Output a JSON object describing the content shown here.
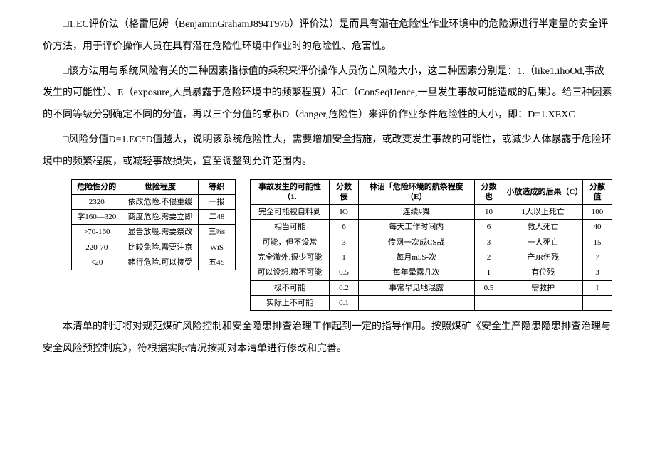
{
  "paragraphs": {
    "p1": "□1.EC评价法（格雷厄姆（BenjaminGrahamJ894T976）评价法）是而具有潜在危险性作业环境中的危险源进行半定量的安全评价方法，用于评价操作人员在具有潜在危险性环境中作业时的危险性、危害性。",
    "p2": "□该方法用与系统风险有关的三种因素指标值的乘积来评价操作人员伤亡风险大小，这三种因素分别是：1.（like1.ihoOd,事故发生的可能性）、E（exposure,人员暴露于危险环境中的频繁程度）和C（ConSeqUence,一旦发生事故可能造成的后果）。给三种因素的不同等级分别确定不同的分值，再以三个分值的乘积D（danger,危险性）来评价作业条件危险性的大小，即：D=1.XEXC",
    "p3": "□风险分值D=1.EC°D值越大，说明该系统危险性大，需要增加安全措施，或改变发生事故的可能性，或减少人体暴露于危险环境中的频繁程度，或减轻事故损失，宜至调整到允许范围内。",
    "p4": "本清单的制订将对规范煤矿风险控制和安全隐患排查治理工作起到一定的指导作用。按照煤矿《安全生产隐患隐患排查治理与安全风险预控制度》，符根据实际情况按期对本清单进行修改和完善。"
  },
  "table1": {
    "headers": [
      "危险性分的",
      "世险程度",
      "等织"
    ],
    "rows": [
      [
        "2320",
        "依改危险.不偎重缓",
        "一报"
      ],
      [
        "学160—320",
        "商度危险.需要立即",
        "二48"
      ],
      [
        ">70-160",
        "显告放般.需要祭改",
        "三⅜s"
      ],
      [
        "220-70",
        "比较免险.需要注京",
        "WiS"
      ],
      [
        "<20",
        "赭行危险.可以接受",
        "五4S"
      ]
    ]
  },
  "table2": {
    "headers": [
      "事故发生的可能性（1.",
      "分数佞",
      "林诏「危险环境的航祭程度（E）",
      "分数也",
      "小放造成的后果（C）",
      "分敝值"
    ],
    "rows": [
      [
        "完全可能被自料到",
        "IO",
        "连续#舞",
        "10",
        "1人以上死亡",
        "100"
      ],
      [
        "相当可能",
        "6",
        "每天工作时间内",
        "6",
        "救人死亡",
        "40"
      ],
      [
        "可能，但不设常",
        "3",
        "传网一次成CS战",
        "3",
        "一人死亡",
        "15"
      ],
      [
        "完全澈外.很少可能",
        "1",
        "每月m5S-次",
        "2",
        "产JR伤残",
        "7"
      ],
      [
        "可以设想.粮不可能",
        "0.5",
        "每年晕露几次",
        "I",
        "有位残",
        "3"
      ],
      [
        "极不可能",
        "0.2",
        "事常早见地混露",
        "0.5",
        "需救护",
        "I"
      ],
      [
        "实际上不可能",
        "0.1",
        "",
        "",
        "",
        ""
      ]
    ]
  }
}
